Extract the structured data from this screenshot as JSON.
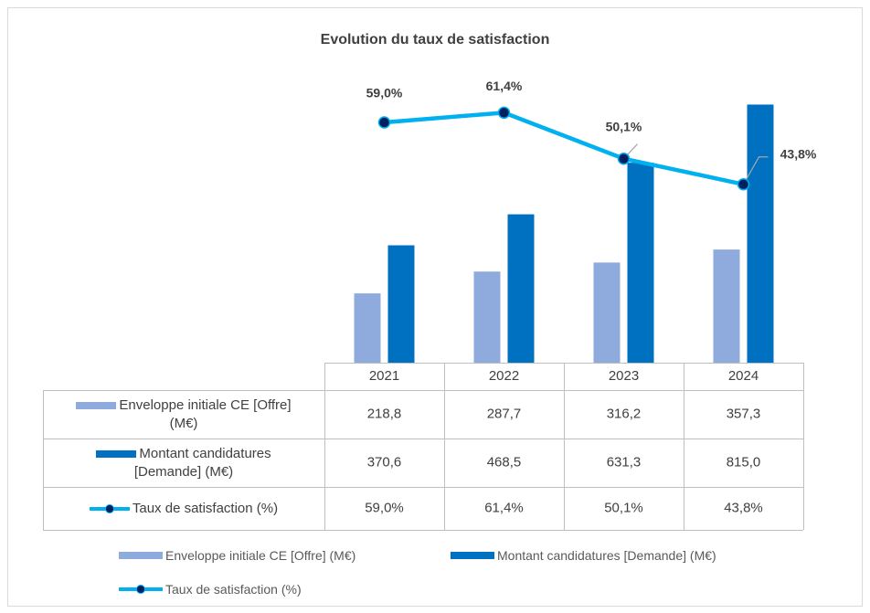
{
  "chart_data": {
    "type": "bar",
    "title": "Evolution du taux de satisfaction",
    "categories": [
      "2021",
      "2022",
      "2023",
      "2024"
    ],
    "series": [
      {
        "name": "Enveloppe initiale CE [Offre] (M€)",
        "color": "#8faadc",
        "values": [
          218.8,
          287.7,
          316.2,
          357.3
        ],
        "value_labels": [
          "218,8",
          "287,7",
          "316,2",
          "357,3"
        ]
      },
      {
        "name": "Montant candidatures [Demande] (M€)",
        "color": "#0070c0",
        "values": [
          370.6,
          468.5,
          631.3,
          815.0
        ],
        "value_labels": [
          "370,6",
          "468,5",
          "631,3",
          "815,0"
        ]
      },
      {
        "name": "Taux de satisfaction (%)",
        "color": "#00b0f0",
        "type": "line",
        "axis": "y2",
        "values": [
          59.0,
          61.4,
          50.1,
          43.8
        ],
        "value_labels": [
          "59,0%",
          "61,4%",
          "50,1%",
          "43,8%"
        ]
      }
    ],
    "ylim": [
      0,
      900
    ],
    "y2lim": [
      0,
      70
    ],
    "grid": false,
    "data_table": true,
    "legend": "bottom"
  }
}
